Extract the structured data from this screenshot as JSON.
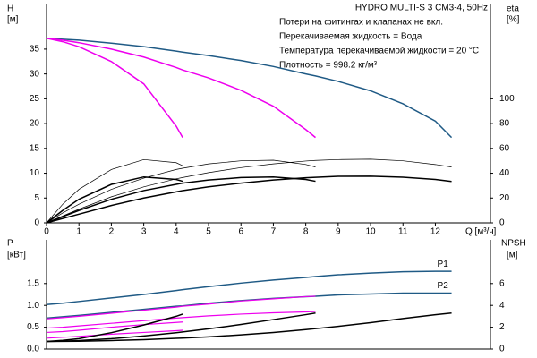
{
  "chart_data": [
    {
      "type": "line",
      "title": "HYDRO MULTI-S 3 CM3-4, 50Hz",
      "notes": [
        "Потери на фитингах и клапанах не вкл.",
        "Перекачиваемая жидкость = Вода",
        "Температура перекачиваемой жидкости = 20 °C",
        "Плотность = 998.2 кг/м³"
      ],
      "xlabel": "Q [м³/ч]",
      "ylabel": "H",
      "yunit": "[м]",
      "y2label": "eta",
      "y2unit": "[%]",
      "x": [
        0,
        0.5,
        1,
        2,
        3,
        4,
        4.2,
        5,
        6,
        7,
        8,
        8.3,
        9,
        10,
        11,
        12,
        12.5
      ],
      "xlim": [
        0,
        13.7
      ],
      "xticks": [
        0,
        1,
        2,
        3,
        4,
        5,
        6,
        7,
        8,
        9,
        10,
        11,
        12
      ],
      "ylim": [
        0,
        44
      ],
      "yticks": [
        0,
        5,
        10,
        15,
        20,
        25,
        30,
        35
      ],
      "y2lim": [
        0,
        176
      ],
      "y2ticks": [
        0,
        20,
        40,
        60,
        80,
        100
      ],
      "series": [
        {
          "color": "#1f5a85",
          "width": 1.5,
          "axis": "y",
          "values": [
            37.2,
            37.0,
            36.8,
            36.2,
            35.5,
            34.6,
            34.4,
            33.7,
            32.7,
            31.5,
            30.0,
            29.6,
            28.5,
            26.6,
            24.0,
            20.5,
            17.2
          ]
        },
        {
          "color": "#ee00ee",
          "width": 1.5,
          "axis": "y",
          "values": [
            37.2,
            36.8,
            36.3,
            35.0,
            33.4,
            31.3,
            30.8,
            29.2,
            26.7,
            23.5,
            18.8,
            17.2,
            null,
            null,
            null,
            null,
            null
          ]
        },
        {
          "color": "#ee00ee",
          "width": 1.5,
          "axis": "y",
          "values": [
            37.2,
            36.5,
            35.5,
            32.5,
            28.0,
            19.5,
            17.2,
            null,
            null,
            null,
            null,
            null,
            null,
            null,
            null,
            null,
            null
          ]
        },
        {
          "color": "#000000",
          "width": 0.7,
          "axis": "y2",
          "values": [
            0,
            15,
            27,
            43,
            51,
            48.5,
            46,
            null,
            null,
            null,
            null,
            null,
            null,
            null,
            null,
            null,
            null
          ]
        },
        {
          "color": "#000000",
          "width": 0.7,
          "axis": "y2",
          "values": [
            0,
            8,
            15,
            27,
            36,
            43,
            44,
            47.5,
            50,
            50.5,
            47,
            45,
            null,
            null,
            null,
            null,
            null
          ]
        },
        {
          "color": "#000000",
          "width": 0.7,
          "axis": "y2",
          "values": [
            0,
            5.5,
            11,
            21,
            29,
            35.5,
            36.5,
            40.5,
            44.5,
            47.5,
            49.8,
            50.3,
            51,
            51.3,
            50,
            47,
            45
          ]
        },
        {
          "color": "#000000",
          "width": 1.5,
          "axis": "y2",
          "values": [
            0,
            10,
            19,
            31,
            37,
            35,
            33.5,
            null,
            null,
            null,
            null,
            null,
            null,
            null,
            null,
            null,
            null
          ]
        },
        {
          "color": "#000000",
          "width": 1.5,
          "axis": "y2",
          "values": [
            0,
            5,
            10,
            19,
            26,
            31,
            32,
            34.5,
            36.5,
            37,
            35,
            33.5,
            null,
            null,
            null,
            null,
            null
          ]
        },
        {
          "color": "#000000",
          "width": 1.5,
          "axis": "y2",
          "values": [
            0,
            3.5,
            7,
            14,
            20,
            25,
            26,
            29,
            32,
            34.5,
            36.3,
            36.7,
            37.5,
            37.6,
            36.8,
            35,
            33.4
          ]
        }
      ]
    },
    {
      "type": "line",
      "ylabel": "P",
      "yunit": "[кВт]",
      "y2label": "NPSH",
      "y2unit": "[м]",
      "x": [
        0,
        0.5,
        1,
        2,
        3,
        4,
        4.2,
        5,
        6,
        7,
        8,
        8.3,
        9,
        10,
        11,
        12,
        12.5
      ],
      "xlim": [
        0,
        13.7
      ],
      "ylim": [
        0,
        2.5
      ],
      "yticks": [
        {
          "value": 0,
          "label": "0.0"
        },
        0.5,
        {
          "value": 1,
          "label": "1.0"
        },
        1.5
      ],
      "y2lim": [
        0,
        10
      ],
      "y2ticks": [
        0,
        2,
        4,
        6
      ],
      "series": [
        {
          "name": "P1",
          "color": "#1f5a85",
          "width": 1.5,
          "axis": "y",
          "values": [
            1.02,
            1.05,
            1.09,
            1.17,
            1.25,
            1.34,
            1.36,
            1.43,
            1.51,
            1.58,
            1.64,
            1.66,
            1.7,
            1.74,
            1.77,
            1.78,
            1.78
          ]
        },
        {
          "name": "P2",
          "color": "#1f5a85",
          "width": 1.5,
          "axis": "y",
          "values": [
            0.71,
            0.74,
            0.77,
            0.84,
            0.91,
            0.98,
            0.99,
            1.05,
            1.11,
            1.16,
            1.2,
            1.21,
            1.24,
            1.26,
            1.28,
            1.28,
            1.28
          ]
        },
        {
          "color": "#ee00ee",
          "width": 1.2,
          "axis": "y",
          "values": [
            0.69,
            0.72,
            0.75,
            0.82,
            0.89,
            0.96,
            0.98,
            1.03,
            1.1,
            1.15,
            1.2,
            1.21,
            null,
            null,
            null,
            null,
            null
          ]
        },
        {
          "color": "#ee00ee",
          "width": 1.2,
          "axis": "y",
          "values": [
            0.48,
            0.5,
            0.53,
            0.59,
            0.65,
            0.71,
            0.72,
            0.76,
            0.8,
            0.83,
            0.85,
            0.86,
            null,
            null,
            null,
            null,
            null
          ]
        },
        {
          "color": "#ee00ee",
          "width": 1.2,
          "axis": "y",
          "values": [
            0.38,
            0.4,
            0.43,
            0.5,
            0.56,
            0.61,
            0.62,
            null,
            null,
            null,
            null,
            null,
            null,
            null,
            null,
            null,
            null
          ]
        },
        {
          "color": "#ee00ee",
          "width": 1.2,
          "axis": "y",
          "values": [
            0.25,
            0.27,
            0.29,
            0.34,
            0.38,
            0.42,
            0.43,
            null,
            null,
            null,
            null,
            null,
            null,
            null,
            null,
            null,
            null
          ]
        },
        {
          "color": "#000000",
          "width": 1.5,
          "axis": "y2",
          "values": [
            0.7,
            0.71,
            0.72,
            0.78,
            0.86,
            0.98,
            1.0,
            1.12,
            1.3,
            1.52,
            1.78,
            1.87,
            2.08,
            2.42,
            2.8,
            3.15,
            3.3
          ]
        },
        {
          "color": "#000000",
          "width": 1.5,
          "axis": "y2",
          "values": [
            0.7,
            0.73,
            0.78,
            0.95,
            1.2,
            1.5,
            1.57,
            1.85,
            2.25,
            2.7,
            3.15,
            3.3,
            null,
            null,
            null,
            null,
            null
          ]
        },
        {
          "color": "#000000",
          "width": 1.5,
          "axis": "y2",
          "values": [
            0.7,
            0.8,
            0.95,
            1.5,
            2.2,
            3.0,
            3.2,
            null,
            null,
            null,
            null,
            null,
            null,
            null,
            null,
            null,
            null
          ]
        }
      ]
    }
  ]
}
